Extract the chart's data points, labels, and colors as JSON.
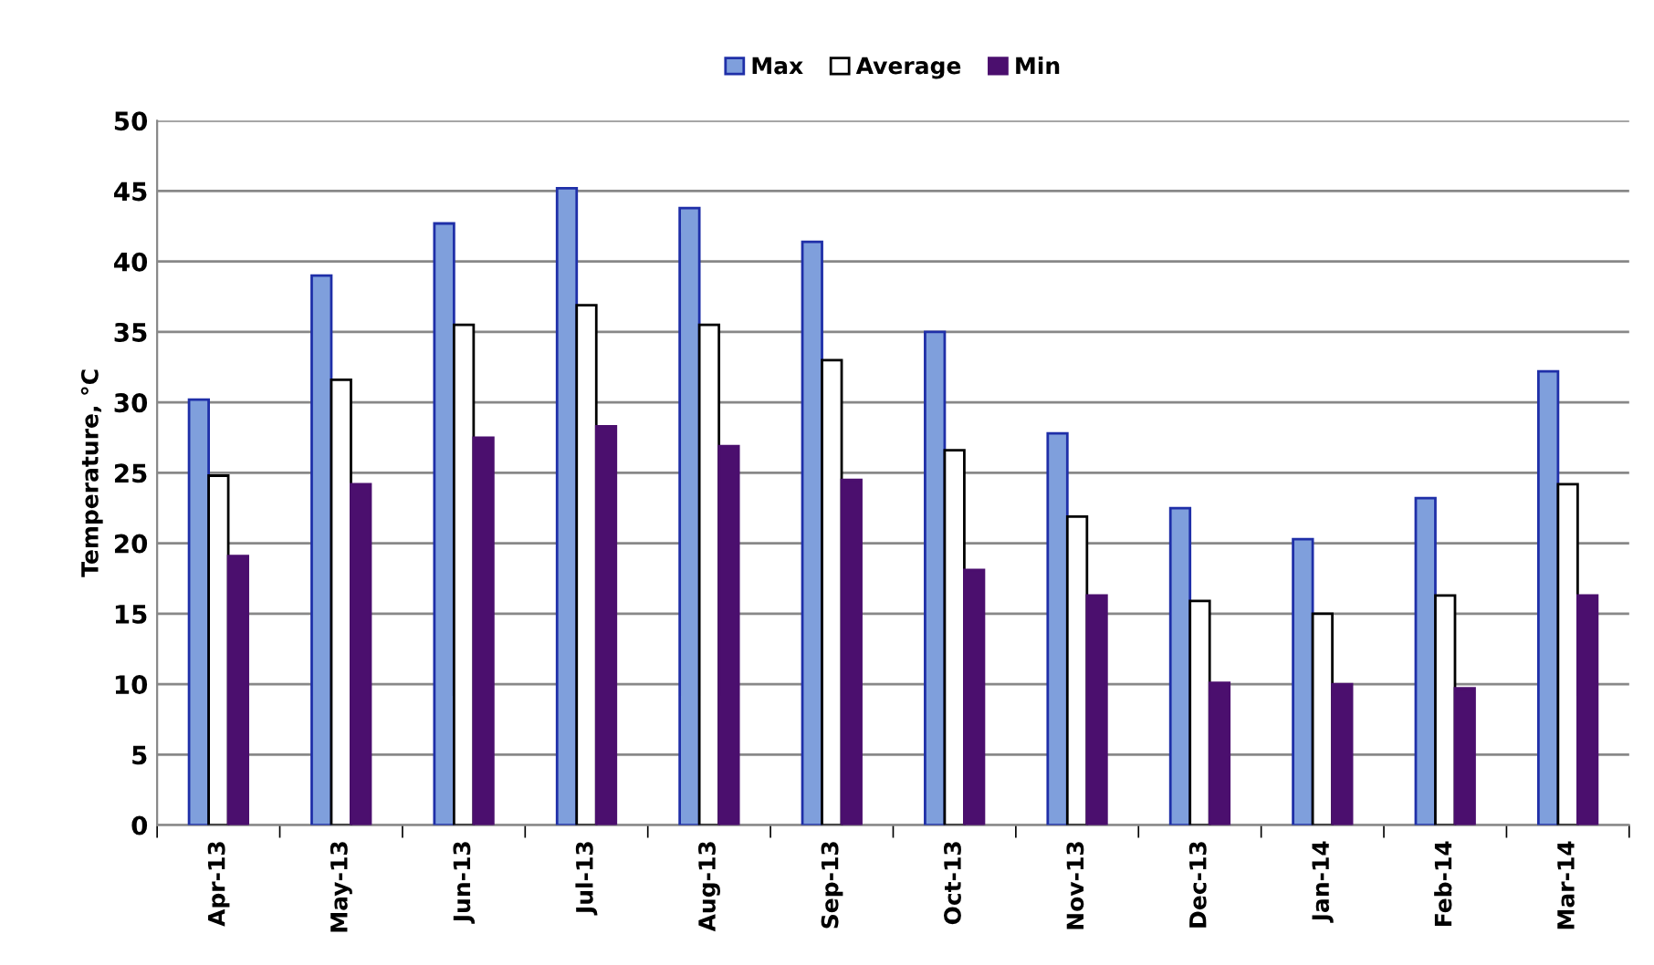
{
  "chart_data": {
    "type": "bar",
    "ylabel": "Temperature, °C",
    "categories": [
      "Apr-13",
      "May-13",
      "Jun-13",
      "Jul-13",
      "Aug-13",
      "Sep-13",
      "Oct-13",
      "Nov-13",
      "Dec-13",
      "Jan-14",
      "Feb-14",
      "Mar-14"
    ],
    "series": [
      {
        "name": "Max",
        "color": "#7f9fdc",
        "values": [
          30.2,
          39.0,
          42.7,
          45.2,
          43.8,
          41.4,
          35.0,
          27.8,
          22.5,
          20.3,
          23.2,
          32.2
        ]
      },
      {
        "name": "Average",
        "color": "#ffffff",
        "values": [
          24.8,
          31.6,
          35.5,
          36.9,
          35.5,
          33.0,
          26.6,
          21.9,
          15.9,
          15.0,
          16.3,
          24.2
        ]
      },
      {
        "name": "Min",
        "color": "#4b0f6e",
        "values": [
          19.1,
          24.2,
          27.5,
          28.3,
          26.9,
          24.5,
          18.1,
          16.3,
          10.1,
          10.0,
          9.7,
          16.3
        ]
      }
    ],
    "ylim": [
      0,
      50
    ],
    "yticks": [
      0,
      5,
      10,
      15,
      20,
      25,
      30,
      35,
      40,
      45,
      50
    ],
    "grid": "y",
    "legend": "top"
  }
}
